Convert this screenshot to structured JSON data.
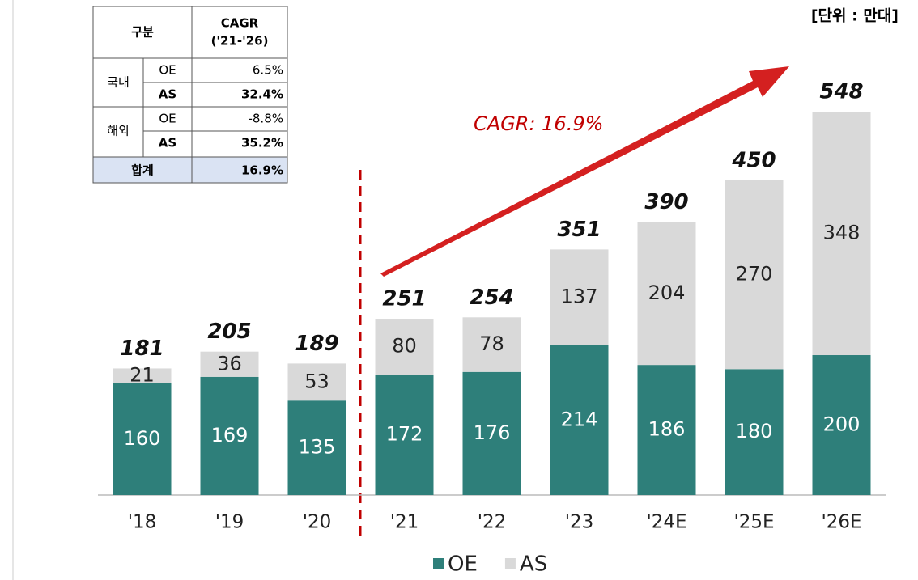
{
  "chart_data": {
    "type": "bar",
    "stacked": true,
    "unit": "[단위 : 만대]",
    "annotation": "CAGR: 16.9%",
    "categories": [
      "'18",
      "'19",
      "'20",
      "'21",
      "'22",
      "'23",
      "'24E",
      "'25E",
      "'26E"
    ],
    "series": [
      {
        "name": "OE",
        "color": "#2e7f7a",
        "values": [
          160,
          169,
          135,
          172,
          176,
          214,
          186,
          180,
          200
        ]
      },
      {
        "name": "AS",
        "color": "#d9d9d9",
        "values": [
          21,
          36,
          53,
          80,
          78,
          137,
          204,
          270,
          348
        ]
      }
    ],
    "totals": [
      181,
      205,
      189,
      251,
      254,
      351,
      390,
      450,
      548
    ]
  },
  "table": {
    "header": [
      "구분",
      "CAGR",
      "('21-'26)"
    ],
    "groups": [
      {
        "name": "국내",
        "rows": [
          [
            "OE",
            "6.5%"
          ],
          [
            "AS",
            "32.4%"
          ]
        ]
      },
      {
        "name": "해외",
        "rows": [
          [
            "OE",
            "-8.8%"
          ],
          [
            "AS",
            "35.2%"
          ]
        ]
      }
    ],
    "total": [
      "합계",
      "16.9%"
    ]
  }
}
